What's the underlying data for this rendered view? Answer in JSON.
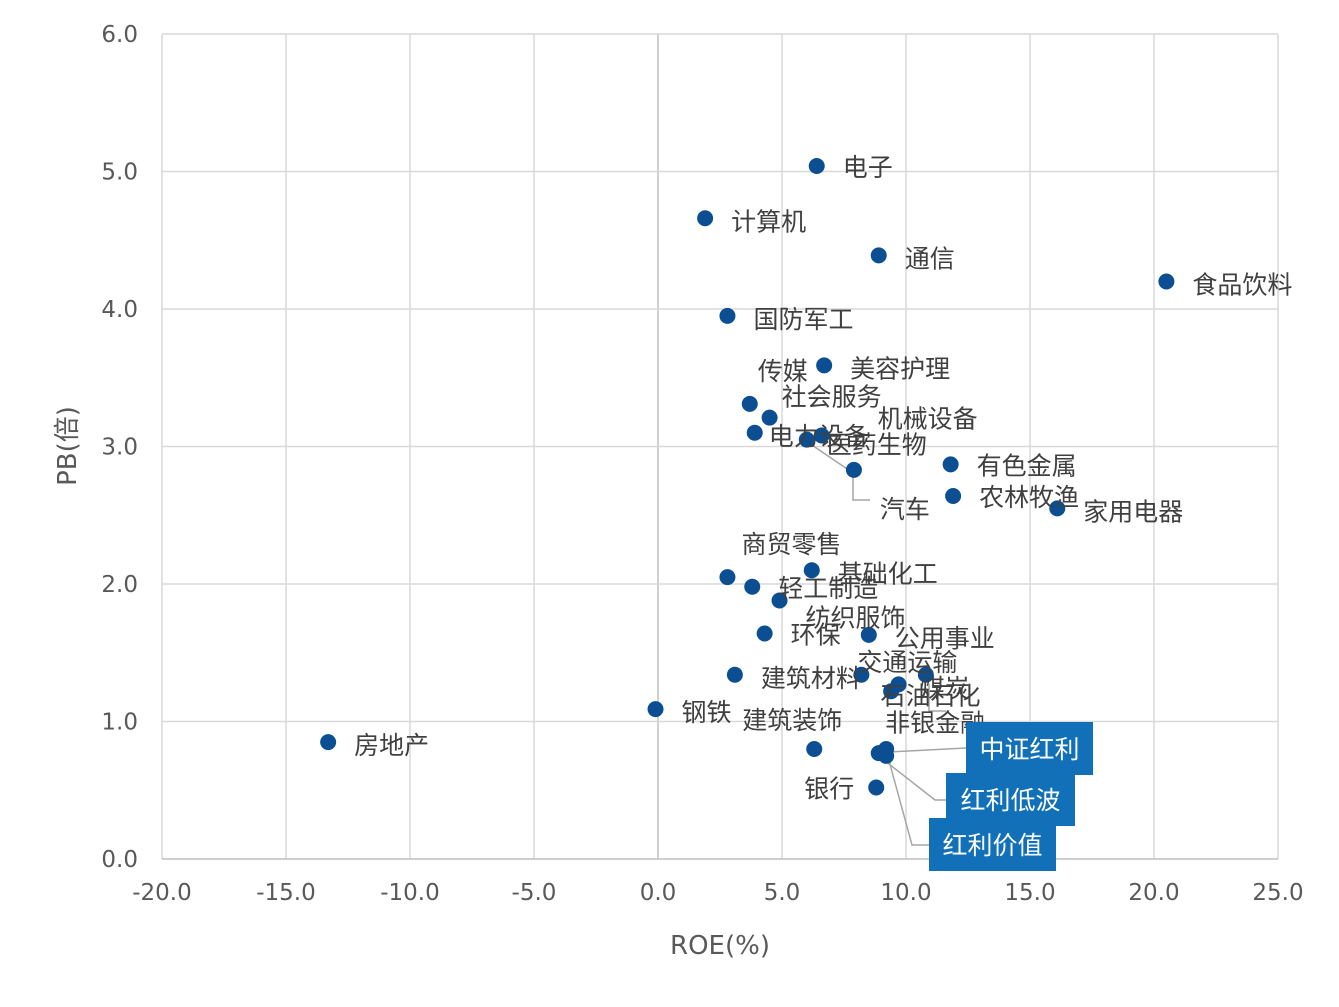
{
  "chart_data": {
    "type": "scatter",
    "xlabel": "ROE(%)",
    "ylabel": "PB(倍)",
    "xlim": [
      -20,
      25
    ],
    "ylim": [
      0,
      6
    ],
    "x_ticks": [
      "-20.0",
      "-15.0",
      "-10.0",
      "-5.0",
      "0.0",
      "5.0",
      "10.0",
      "15.0",
      "20.0",
      "25.0"
    ],
    "y_ticks": [
      "0.0",
      "1.0",
      "2.0",
      "3.0",
      "4.0",
      "5.0",
      "6.0"
    ],
    "grid": true,
    "point_color": "#0B4F92",
    "highlight_color": "#1170B8",
    "points": [
      {
        "name": "电子",
        "x": 6.4,
        "y": 5.04
      },
      {
        "name": "计算机",
        "x": 1.9,
        "y": 4.66
      },
      {
        "name": "通信",
        "x": 8.9,
        "y": 4.39
      },
      {
        "name": "食品饮料",
        "x": 20.5,
        "y": 4.2
      },
      {
        "name": "国防军工",
        "x": 2.8,
        "y": 3.95
      },
      {
        "name": "美容护理",
        "x": 6.7,
        "y": 3.59
      },
      {
        "name": "传媒",
        "x": 3.7,
        "y": 3.31
      },
      {
        "name": "社会服务",
        "x": 4.5,
        "y": 3.21
      },
      {
        "name": "机械设备",
        "x": 6.6,
        "y": 3.08
      },
      {
        "name": "电力设备",
        "x": 3.9,
        "y": 3.1
      },
      {
        "name": "医药生物",
        "x": 6.0,
        "y": 3.05
      },
      {
        "name": "汽车",
        "x": 7.9,
        "y": 2.83
      },
      {
        "name": "有色金属",
        "x": 11.8,
        "y": 2.87
      },
      {
        "name": "农林牧渔",
        "x": 11.9,
        "y": 2.64
      },
      {
        "name": "家用电器",
        "x": 16.1,
        "y": 2.55
      },
      {
        "name": "商贸零售",
        "x": 2.8,
        "y": 2.05
      },
      {
        "name": "基础化工",
        "x": 6.2,
        "y": 2.1
      },
      {
        "name": "轻工制造",
        "x": 3.8,
        "y": 1.98
      },
      {
        "name": "纺织服饰",
        "x": 4.9,
        "y": 1.88
      },
      {
        "name": "环保",
        "x": 4.3,
        "y": 1.64
      },
      {
        "name": "公用事业",
        "x": 8.5,
        "y": 1.63
      },
      {
        "name": "建筑材料",
        "x": 3.1,
        "y": 1.34
      },
      {
        "name": "交通运输",
        "x": 8.2,
        "y": 1.34
      },
      {
        "name": "煤炭",
        "x": 10.8,
        "y": 1.34
      },
      {
        "name": "石油石化",
        "x": 9.7,
        "y": 1.27
      },
      {
        "name": "非银金融",
        "x": 9.4,
        "y": 1.22
      },
      {
        "name": "钢铁",
        "x": -0.1,
        "y": 1.09
      },
      {
        "name": "房地产",
        "x": -13.3,
        "y": 0.85
      },
      {
        "name": "建筑装饰",
        "x": 6.3,
        "y": 0.8
      },
      {
        "name": "银行",
        "x": 8.8,
        "y": 0.52
      }
    ],
    "highlighted": [
      {
        "name": "中证红利",
        "x": 9.2,
        "y": 0.8
      },
      {
        "name": "红利低波",
        "x": 8.9,
        "y": 0.77
      },
      {
        "name": "红利价值",
        "x": 9.2,
        "y": 0.75
      }
    ]
  }
}
